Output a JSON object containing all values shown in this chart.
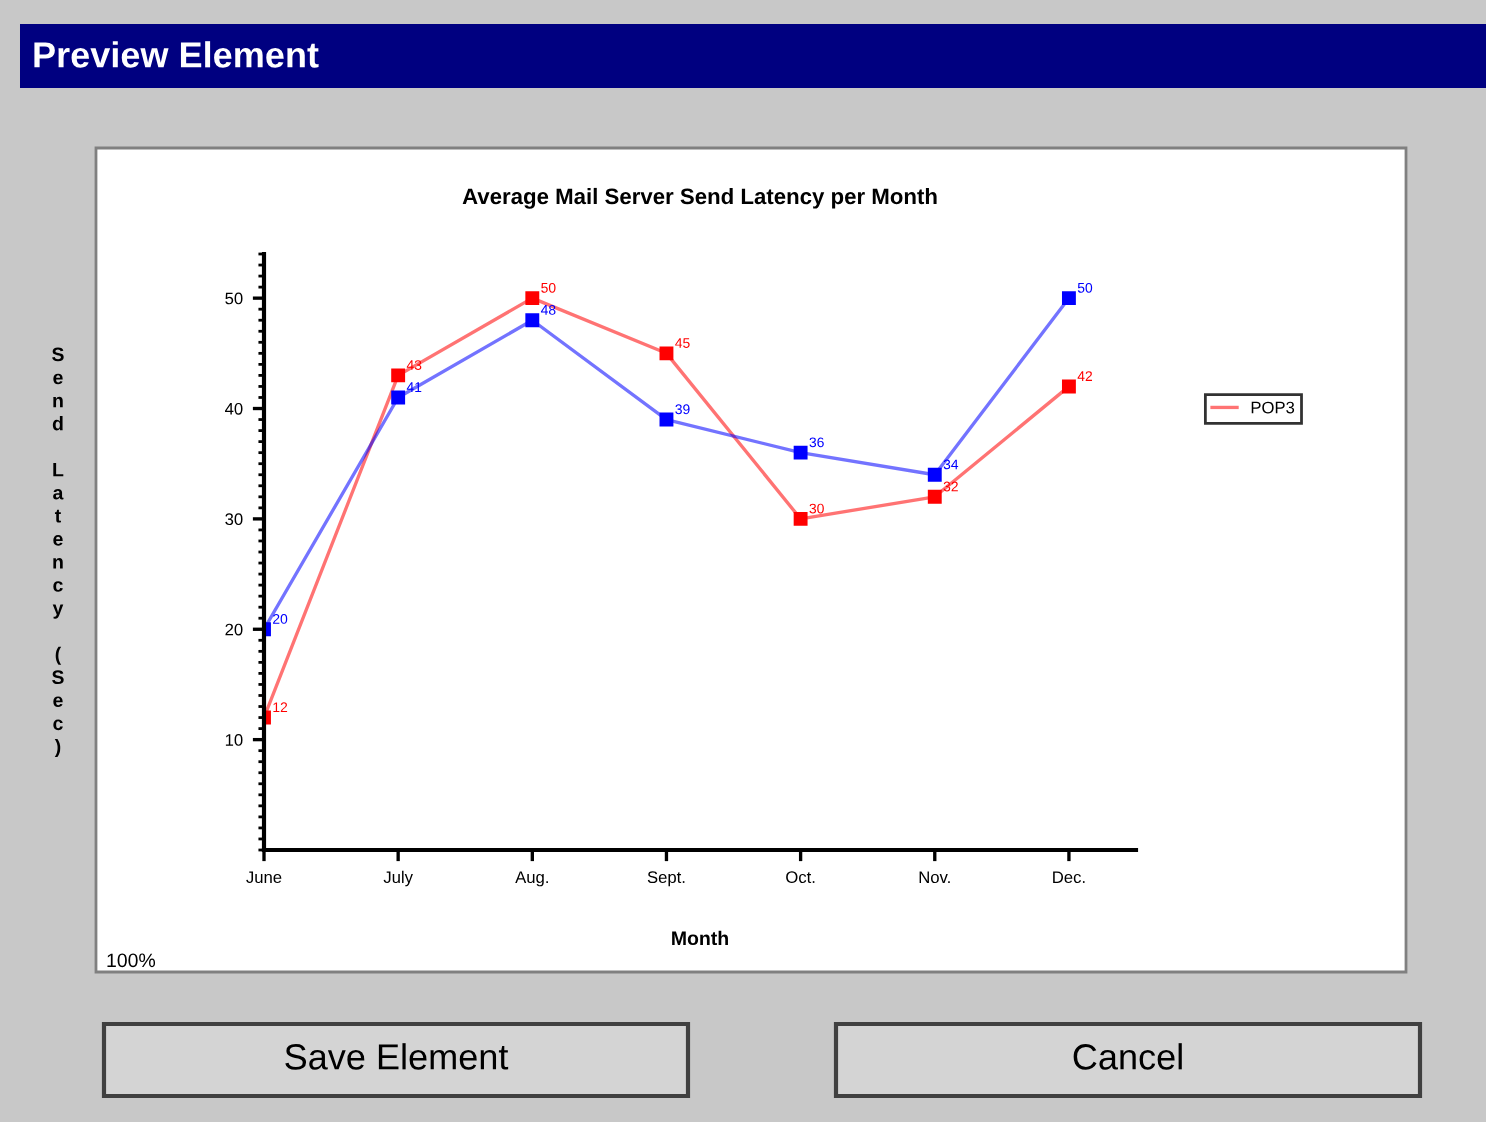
{
  "chart_data": {
    "type": "line",
    "title": "Average Mail Server Send Latency per Month",
    "xlabel": "Month",
    "ylabel": "Send Latency (Sec)",
    "categories": [
      "June",
      "July",
      "Aug.",
      "Sept.",
      "Oct.",
      "Nov.",
      "Dec."
    ],
    "series": [
      {
        "name": "POP3",
        "color": "#ff0000",
        "values": [
          12,
          43,
          50,
          45,
          30,
          32,
          42
        ]
      },
      {
        "color": "#0000ff",
        "values": [
          20,
          41,
          48,
          39,
          36,
          34,
          50
        ]
      }
    ],
    "ylim": [
      0,
      54
    ],
    "yticks": [
      10,
      20,
      30,
      40,
      50
    ],
    "grid": false,
    "legend": "right",
    "marker": "square",
    "line_style": "solid",
    "data_labels": true,
    "annotations": [
      "Preview Element",
      "Save Element",
      "Cancel",
      "100%"
    ]
  }
}
